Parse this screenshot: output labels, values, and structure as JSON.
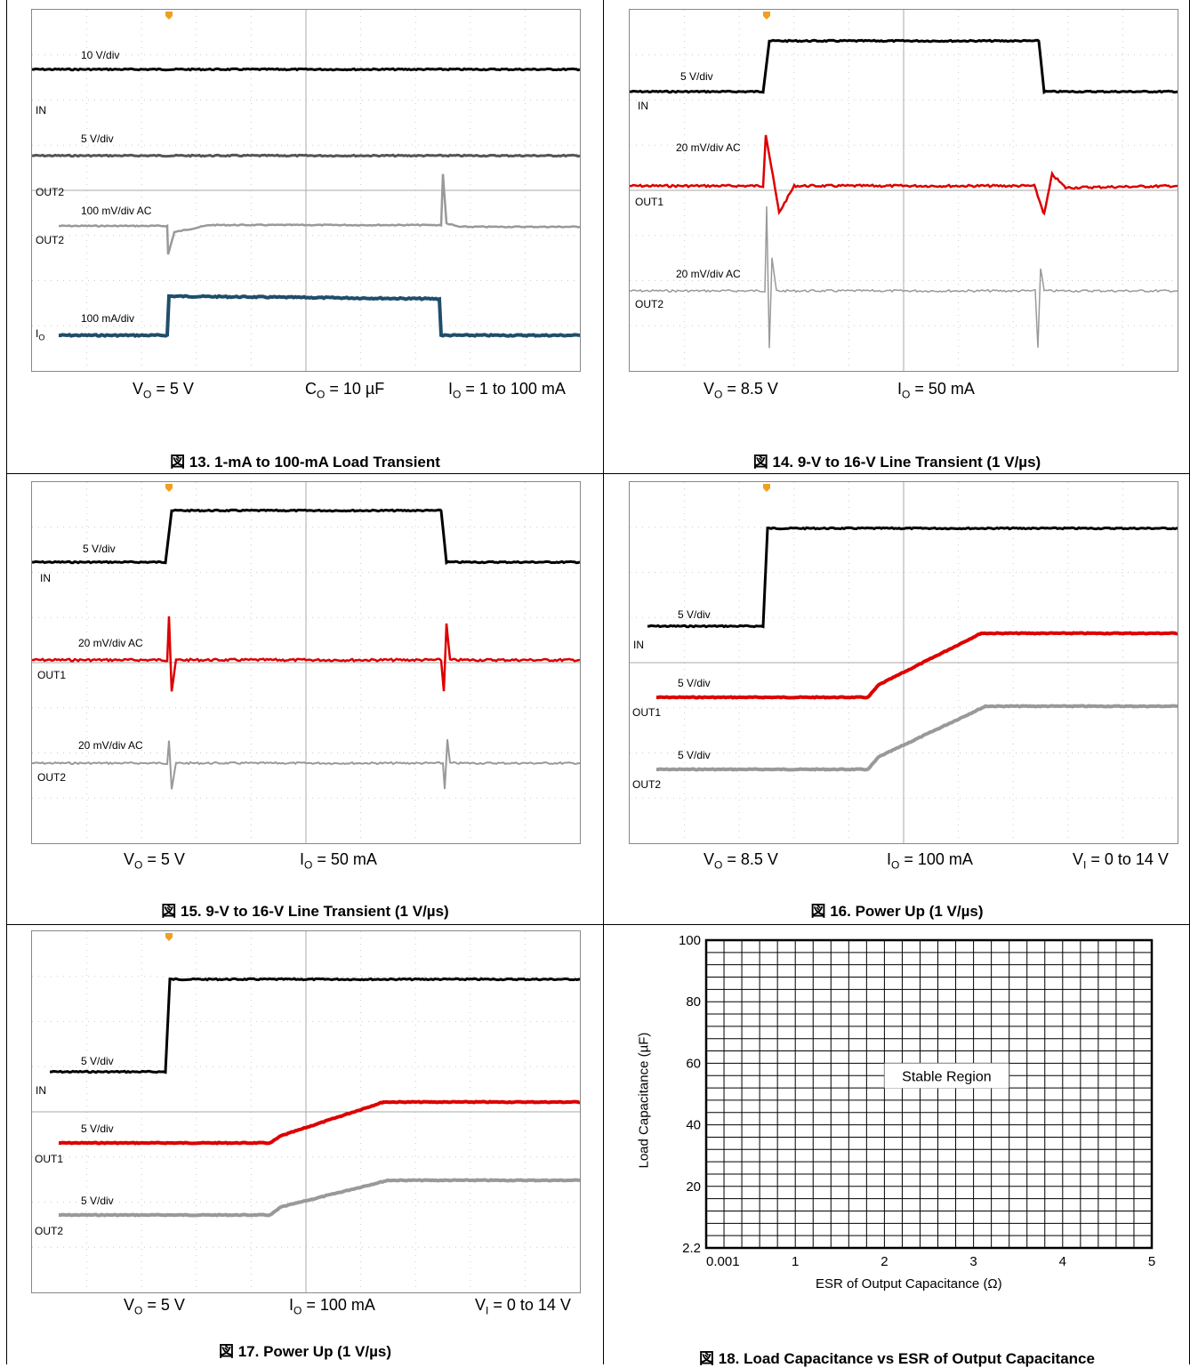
{
  "header_text": "",
  "figures": [
    {
      "id": "fig13",
      "caption": "図 13. 1-mA to 100-mA Load Transient",
      "params": [
        "V_O = 5 V",
        "C_O = 10 µF",
        "I_O = 1 to 100 mA"
      ],
      "traces": [
        {
          "scale": "10 V/div",
          "name": "IN",
          "color": "#000000"
        },
        {
          "scale": "5 V/div",
          "name": "OUT2",
          "color": "#555555"
        },
        {
          "scale": "100 mV/div AC",
          "name": "OUT2",
          "color": "#999999"
        },
        {
          "scale": "100 mA/div",
          "name": "I_O",
          "color": "#1f4e6b"
        }
      ]
    },
    {
      "id": "fig14",
      "caption": "図 14. 9-V to 16-V Line Transient (1 V/µs)",
      "params": [
        "V_O = 8.5 V",
        "I_O = 50 mA"
      ],
      "traces": [
        {
          "scale": "5 V/div",
          "name": "IN",
          "color": "#000000"
        },
        {
          "scale": "20 mV/div AC",
          "name": "OUT1",
          "color": "#dd0000"
        },
        {
          "scale": "20 mV/div AC",
          "name": "OUT2",
          "color": "#999999"
        }
      ]
    },
    {
      "id": "fig15",
      "caption": "図 15. 9-V to 16-V Line Transient (1 V/µs)",
      "params": [
        "V_O = 5 V",
        "I_O = 50 mA"
      ],
      "traces": [
        {
          "scale": "5 V/div",
          "name": "IN",
          "color": "#000000"
        },
        {
          "scale": "20 mV/div AC",
          "name": "OUT1",
          "color": "#dd0000"
        },
        {
          "scale": "20 mV/div AC",
          "name": "OUT2",
          "color": "#999999"
        }
      ]
    },
    {
      "id": "fig16",
      "caption": "図 16. Power Up (1 V/µs)",
      "params": [
        "V_O = 8.5 V",
        "I_O = 100 mA",
        "V_I = 0 to 14 V"
      ],
      "traces": [
        {
          "scale": "5 V/div",
          "name": "IN",
          "color": "#000000"
        },
        {
          "scale": "5 V/div",
          "name": "OUT1",
          "color": "#dd0000"
        },
        {
          "scale": "5 V/div",
          "name": "OUT2",
          "color": "#999999"
        }
      ]
    },
    {
      "id": "fig17",
      "caption": "図 17. Power Up (1 V/µs)",
      "params": [
        "V_O = 5 V",
        "I_O = 100 mA",
        "V_I = 0 to 14 V"
      ],
      "traces": [
        {
          "scale": "5 V/div",
          "name": "IN",
          "color": "#000000"
        },
        {
          "scale": "5 V/div",
          "name": "OUT1",
          "color": "#dd0000"
        },
        {
          "scale": "5 V/div",
          "name": "OUT2",
          "color": "#999999"
        }
      ]
    }
  ],
  "chart_data": {
    "type": "area",
    "caption": "図 18. Load Capacitance vs ESR of Output Capacitance",
    "xlabel": "ESR of Output Capacitance (Ω)",
    "ylabel": "Load Capacitance (µF)",
    "x_ticks": [
      "0.001",
      "1",
      "2",
      "3",
      "4",
      "5"
    ],
    "y_ticks": [
      "2.2",
      "20",
      "40",
      "60",
      "80",
      "100"
    ],
    "xlim": [
      0.001,
      5
    ],
    "ylim": [
      2.2,
      100
    ],
    "grid": true,
    "region_label": "Stable Region",
    "series": [
      {
        "name": "Stable Region",
        "x": [
          0.001,
          5
        ],
        "y_low": [
          2.2,
          2.2
        ],
        "y_high": [
          100,
          100
        ]
      }
    ]
  }
}
